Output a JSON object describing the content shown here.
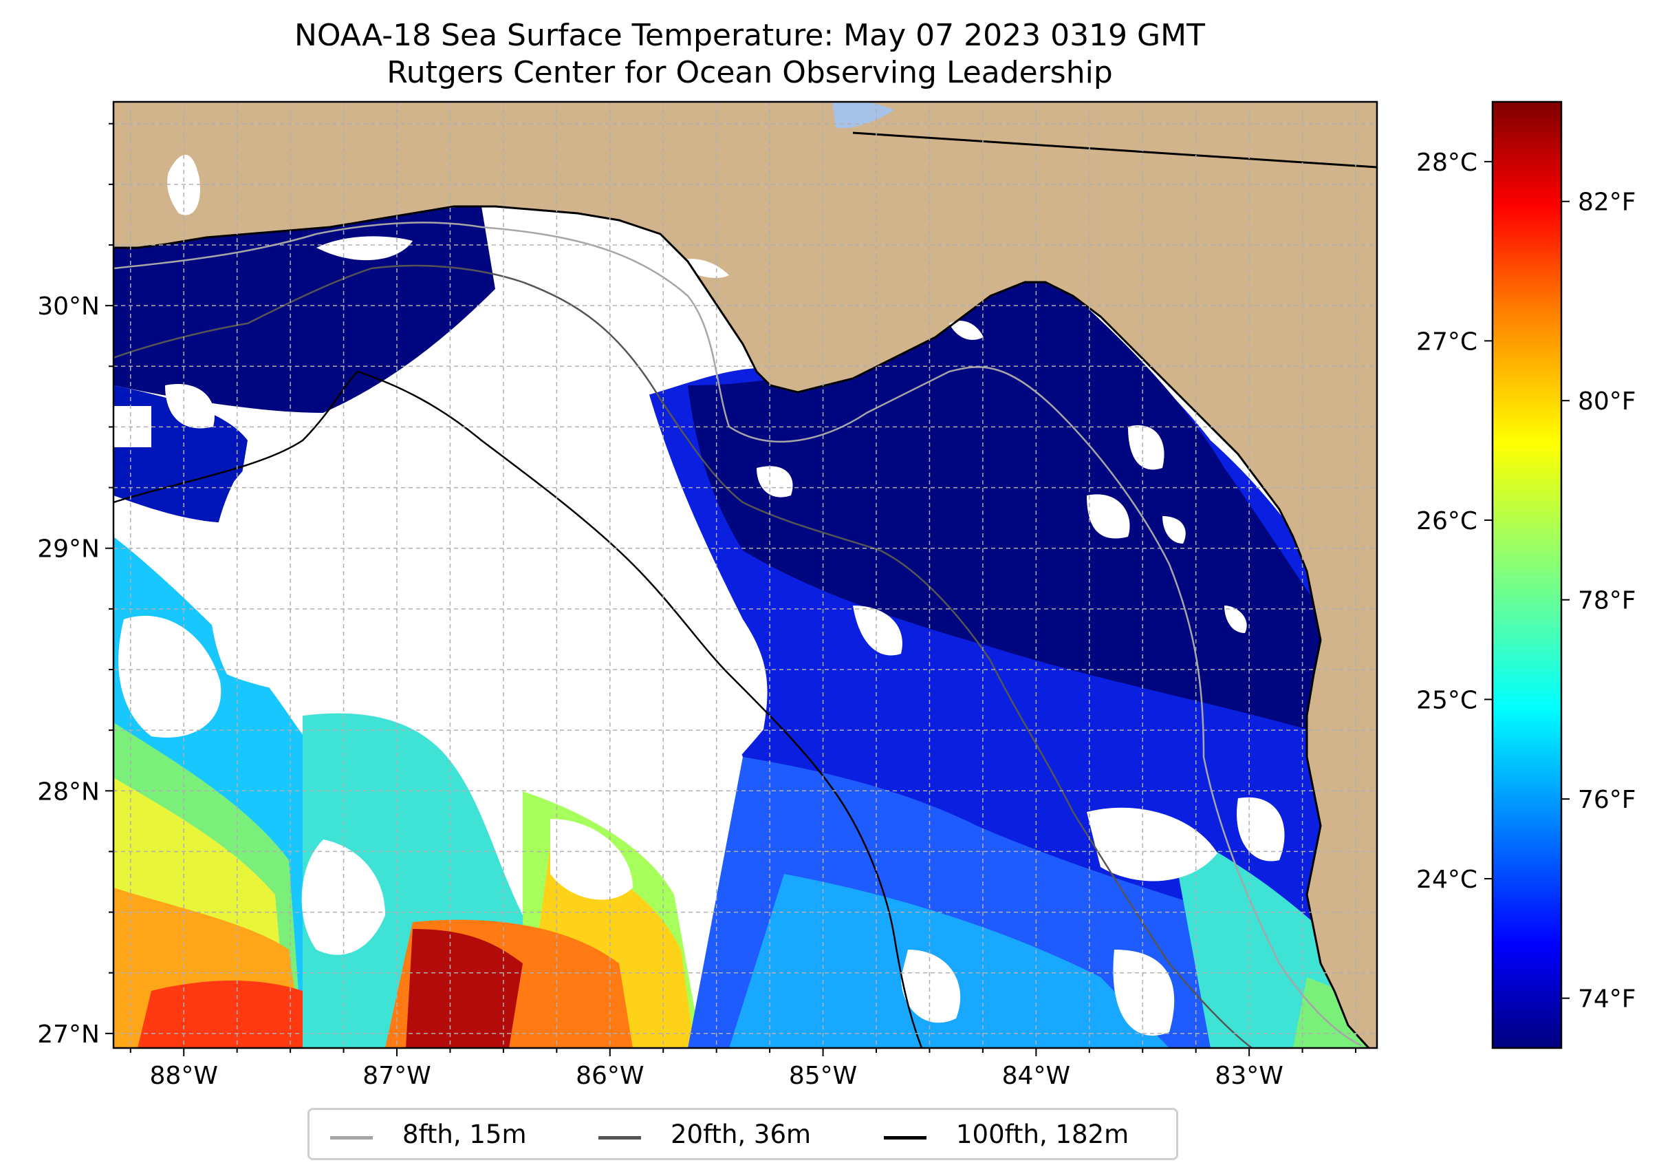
{
  "title": {
    "line1": "NOAA-18 Sea Surface Temperature: May 07 2023 0319 GMT",
    "line2": "Rutgers Center for Ocean Observing Leadership"
  },
  "map": {
    "lon_range": [
      -88.33,
      -82.4
    ],
    "lat_range": [
      26.94,
      30.84
    ],
    "lon_ticks": [
      {
        "value": -88,
        "label": "88°W"
      },
      {
        "value": -87,
        "label": "87°W"
      },
      {
        "value": -86,
        "label": "86°W"
      },
      {
        "value": -85,
        "label": "85°W"
      },
      {
        "value": -84,
        "label": "84°W"
      },
      {
        "value": -83,
        "label": "83°W"
      }
    ],
    "lat_ticks": [
      {
        "value": 30,
        "label": "30°N"
      },
      {
        "value": 29,
        "label": "29°N"
      },
      {
        "value": 28,
        "label": "28°N"
      },
      {
        "value": 27,
        "label": "27°N"
      }
    ],
    "colors": {
      "land": "#d2b48c",
      "no_data": "#ffffff",
      "gridline": "#b0b0b0",
      "coastline": "#000000",
      "lake": "#a6c2e8"
    }
  },
  "colorbar": {
    "colormap": "jet",
    "celsius_ticks": [
      {
        "value": 28,
        "label": "28°C"
      },
      {
        "value": 27,
        "label": "27°C"
      },
      {
        "value": 26,
        "label": "26°C"
      },
      {
        "value": 25,
        "label": "25°C"
      },
      {
        "value": 24,
        "label": "24°C"
      }
    ],
    "fahrenheit_ticks": [
      {
        "value": 82,
        "label": "82°F"
      },
      {
        "value": 80,
        "label": "80°F"
      },
      {
        "value": 78,
        "label": "78°F"
      },
      {
        "value": 76,
        "label": "76°F"
      },
      {
        "value": 74,
        "label": "74°F"
      }
    ],
    "range_f": [
      73.5,
      83.0
    ],
    "colors": [
      "#00007f",
      "#0000ff",
      "#007fff",
      "#00ffff",
      "#7fff7f",
      "#ffff00",
      "#ff7f00",
      "#ff0000",
      "#7f0000"
    ]
  },
  "legend": {
    "items": [
      {
        "label": "8fth, 15m",
        "color": "#a6a6a6"
      },
      {
        "label": "20fth, 36m",
        "color": "#555555"
      },
      {
        "label": "100fth, 182m",
        "color": "#000000"
      }
    ]
  }
}
